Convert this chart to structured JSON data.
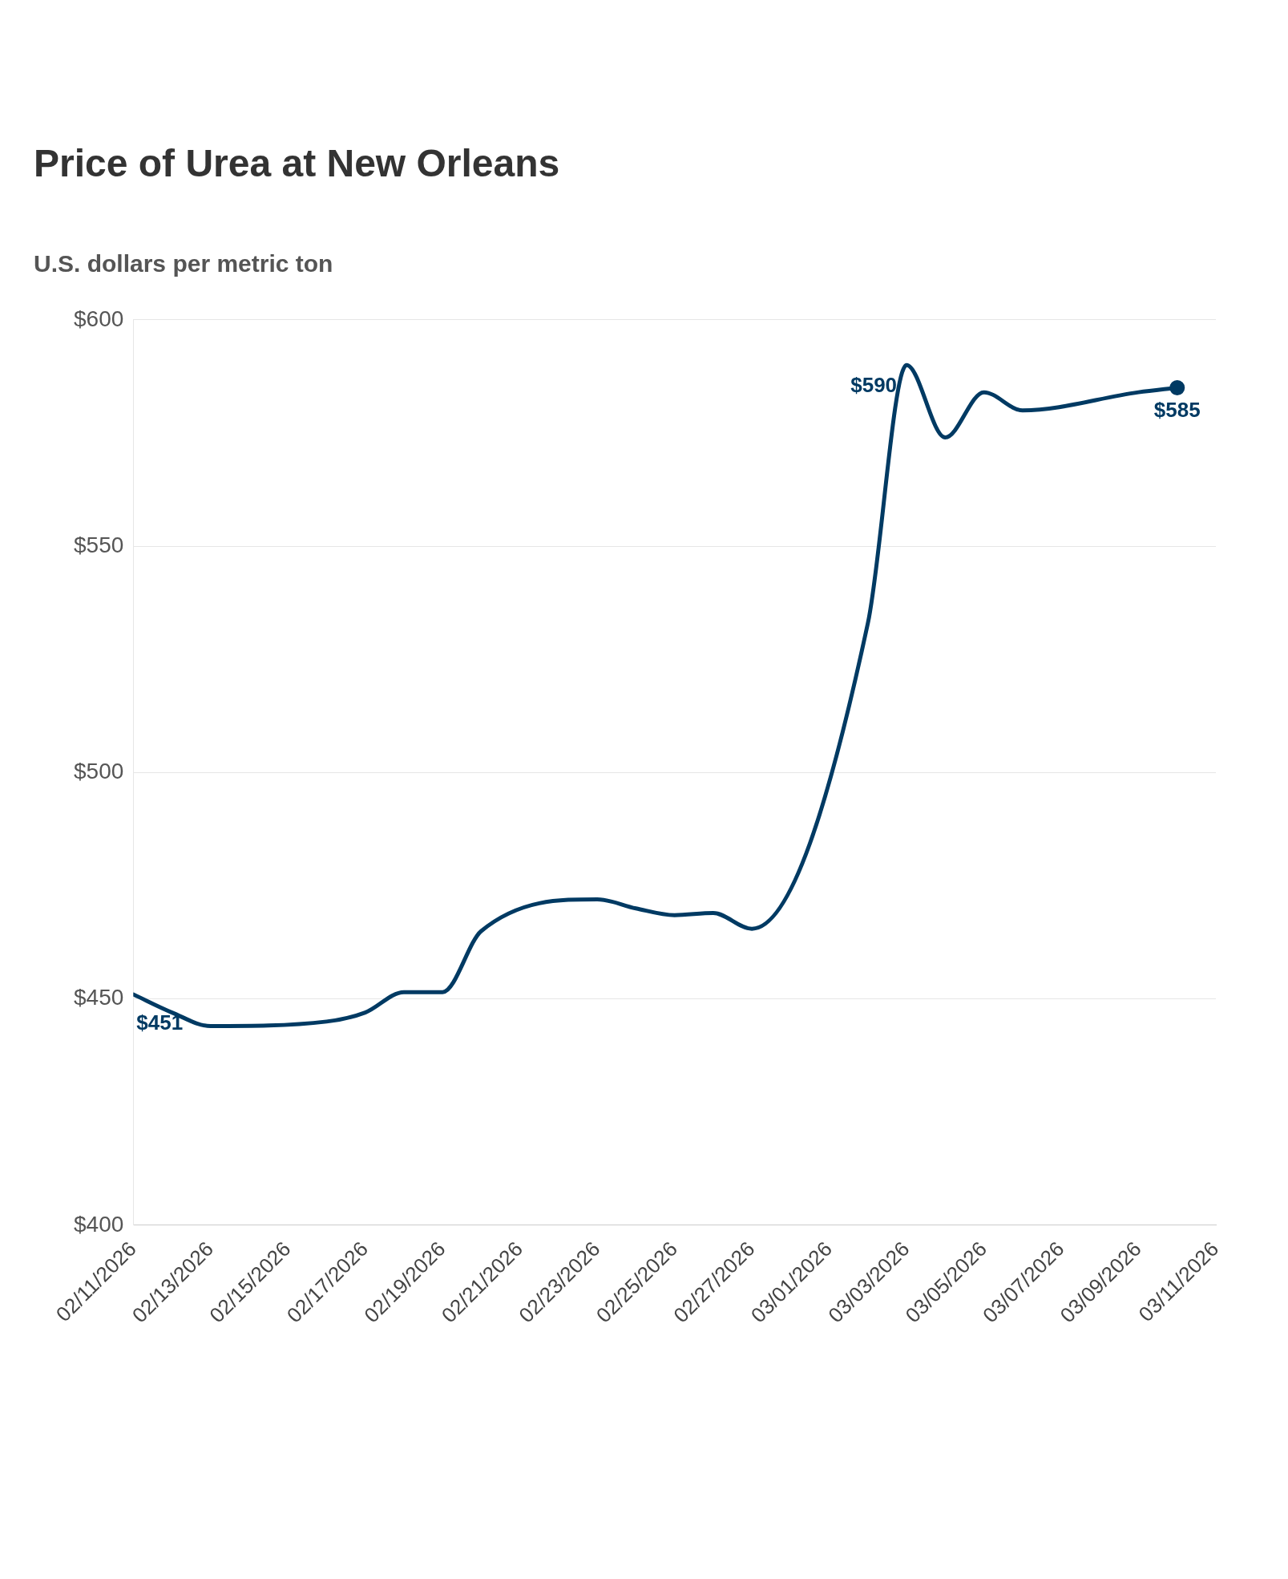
{
  "chart_data": {
    "type": "line",
    "title": "Price of Urea at New Orleans",
    "subtitle": "U.S. dollars per metric ton",
    "x": [
      "2026-02-11",
      "2026-02-12",
      "2026-02-13",
      "2026-02-16",
      "2026-02-17",
      "2026-02-18",
      "2026-02-19",
      "2026-02-20",
      "2026-02-23",
      "2026-02-24",
      "2026-02-25",
      "2026-02-26",
      "2026-02-27",
      "2026-03-02",
      "2026-03-03",
      "2026-03-04",
      "2026-03-05",
      "2026-03-06",
      "2026-03-09",
      "2026-03-10"
    ],
    "series": [
      {
        "color": "#003a63",
        "values": [
          451,
          447,
          444,
          445,
          447,
          451.5,
          451.5,
          465,
          472,
          470,
          468.5,
          469,
          465.5,
          533,
          590,
          574,
          584,
          580,
          584,
          585
        ],
        "value_labels": [
          "$451",
          null,
          null,
          null,
          null,
          null,
          null,
          null,
          null,
          null,
          null,
          null,
          null,
          null,
          "$590",
          null,
          null,
          null,
          null,
          "$585"
        ]
      }
    ],
    "xlim": [
      "2026-02-11",
      "2026-03-11"
    ],
    "xticks": [
      {
        "value": "2026-02-11",
        "label": "02/11/2026"
      },
      {
        "value": "2026-02-13",
        "label": "02/13/2026"
      },
      {
        "value": "2026-02-15",
        "label": "02/15/2026"
      },
      {
        "value": "2026-02-17",
        "label": "02/17/2026"
      },
      {
        "value": "2026-02-19",
        "label": "02/19/2026"
      },
      {
        "value": "2026-02-21",
        "label": "02/21/2026"
      },
      {
        "value": "2026-02-23",
        "label": "02/23/2026"
      },
      {
        "value": "2026-02-25",
        "label": "02/25/2026"
      },
      {
        "value": "2026-02-27",
        "label": "02/27/2026"
      },
      {
        "value": "2026-03-01",
        "label": "03/01/2026"
      },
      {
        "value": "2026-03-03",
        "label": "03/03/2026"
      },
      {
        "value": "2026-03-05",
        "label": "03/05/2026"
      },
      {
        "value": "2026-03-07",
        "label": "03/07/2026"
      },
      {
        "value": "2026-03-09",
        "label": "03/09/2026"
      },
      {
        "value": "2026-03-11",
        "label": "03/11/2026"
      }
    ],
    "ylim": [
      400,
      600
    ],
    "yticks": [
      {
        "value": 400,
        "label": "$400"
      },
      {
        "value": 450,
        "label": "$450"
      },
      {
        "value": 500,
        "label": "$500"
      },
      {
        "value": 550,
        "label": "$550"
      },
      {
        "value": 600,
        "label": "$600"
      }
    ],
    "grid": "y",
    "legend": false
  }
}
